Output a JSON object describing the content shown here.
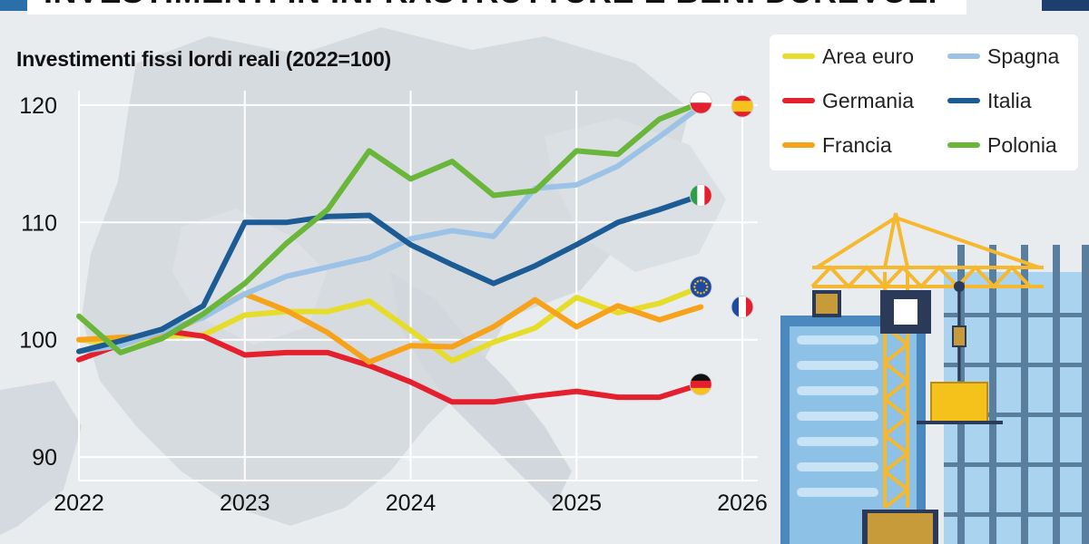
{
  "header": {
    "title": "INVESTIMENTI IN INFRASTRUTTURE E BENI DUREVOLI"
  },
  "chart_data": {
    "type": "line",
    "title": "Investimenti fissi lordi reali (2022=100)",
    "xlabel": "",
    "ylabel": "",
    "xlim": [
      2022,
      2026
    ],
    "ylim": [
      88,
      122
    ],
    "x_ticks": [
      "2022",
      "2023",
      "2024",
      "2025",
      "2026"
    ],
    "y_ticks": [
      "90",
      "100",
      "110",
      "120"
    ],
    "grid": true,
    "legend_position": "top-right",
    "x": [
      2022.0,
      2022.25,
      2022.5,
      2022.75,
      2023.0,
      2023.25,
      2023.5,
      2023.75,
      2024.0,
      2024.25,
      2024.5,
      2024.75,
      2025.0,
      2025.25,
      2025.5,
      2025.75
    ],
    "series": [
      {
        "name": "Area euro",
        "color": "#e6dc2a",
        "flag": "eu",
        "values": [
          100.0,
          99.6,
          100.3,
          100.4,
          102.1,
          102.4,
          102.4,
          103.3,
          100.8,
          98.2,
          99.8,
          101.0,
          103.6,
          102.3,
          103.1,
          104.5
        ]
      },
      {
        "name": "Germania",
        "color": "#e5202e",
        "flag": "de",
        "values": [
          98.3,
          99.6,
          100.8,
          100.3,
          98.7,
          98.9,
          98.9,
          97.8,
          96.4,
          94.7,
          94.7,
          95.2,
          95.6,
          95.1,
          95.1,
          96.2
        ]
      },
      {
        "name": "Francia",
        "color": "#f7a21b",
        "flag": "fr",
        "values": [
          100.0,
          100.2,
          100.3,
          102.0,
          103.9,
          102.5,
          100.6,
          98.1,
          99.5,
          99.4,
          101.1,
          103.4,
          101.1,
          102.9,
          101.7,
          102.8
        ]
      },
      {
        "name": "Spagna",
        "color": "#9cc3e6",
        "flag": "es",
        "values": [
          99.0,
          99.5,
          100.7,
          101.9,
          103.9,
          105.4,
          106.2,
          107.0,
          108.6,
          109.3,
          108.8,
          112.9,
          113.2,
          114.8,
          117.3,
          119.9
        ]
      },
      {
        "name": "Italia",
        "color": "#1c5b94",
        "flag": "it",
        "values": [
          99.0,
          99.9,
          100.9,
          102.9,
          110.0,
          110.0,
          110.5,
          110.6,
          108.1,
          106.4,
          104.8,
          106.3,
          108.1,
          110.0,
          111.1,
          112.3
        ]
      },
      {
        "name": "Polonia",
        "color": "#6ab63a",
        "flag": "pl",
        "values": [
          102.0,
          98.9,
          100.1,
          102.2,
          104.8,
          108.2,
          111.1,
          116.1,
          113.7,
          115.2,
          112.3,
          112.7,
          116.1,
          115.8,
          118.8,
          120.2
        ]
      }
    ]
  }
}
